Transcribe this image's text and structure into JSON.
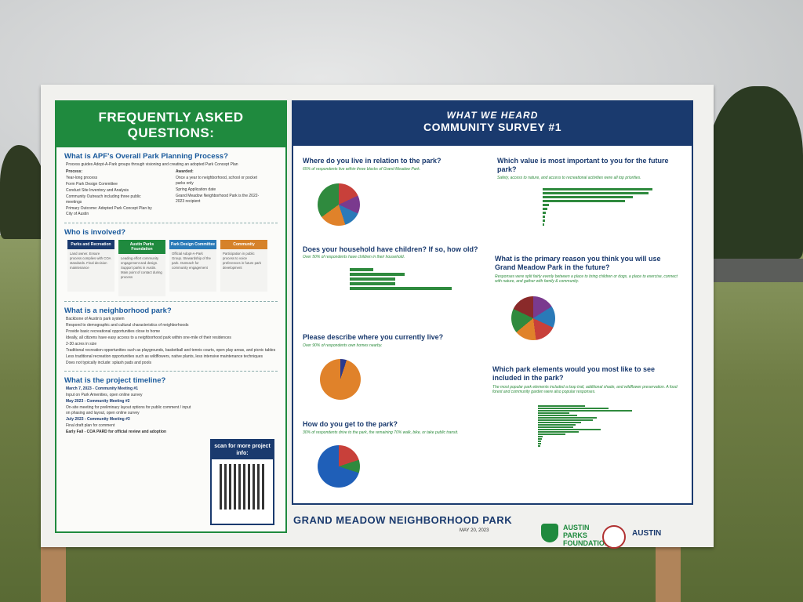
{
  "faq": {
    "title": "FREQUENTLY ASKED QUESTIONS:",
    "q1": "What is APF's Overall Park Planning Process?",
    "q1_text": "Process guides Adopt-A-Park groups through visioning and creating an adopted Park Concept Plan",
    "process_label": "Process:",
    "process": [
      "Year-long process",
      "Form Park Design Committee",
      "Conduct Site Inventory and Analysis",
      "Community Outreach including three public meetings",
      "Primary Outcome: Adopted Park Concept Plan by City of Austin"
    ],
    "awarded_label": "Awarded:",
    "awarded": [
      "Once a year to neighborhood, school or pocket parks only",
      "Spring Application date",
      "Grand Meadow Neighborhood Park is the 2022-2023 recipient"
    ],
    "q2": "Who is involved?",
    "orgs": [
      {
        "name": "Parks and Recreation",
        "color": "#1a3a6e",
        "text": "Land owner. Ensure process complies with COA standards. Final decision maintenance"
      },
      {
        "name": "Austin Parks Foundation",
        "color": "#1f8a3e",
        "text": "Leading effort community engagement and design. Support parks in Austin. Main point of contact during process"
      },
      {
        "name": "Park Design Committee",
        "color": "#2a7ab8",
        "text": "Official Adopt-A-Park Group. Stewardship of the park. Outreach for community engagement"
      },
      {
        "name": "Community",
        "color": "#d6822a",
        "text": "Participation in public process to voice preferences in future park development"
      }
    ],
    "q3": "What is a neighborhood park?",
    "q3_items": [
      "Backbone of Austin's park system",
      "Respond to demographic and cultural characteristics of neighborhoods",
      "Provide basic recreational opportunities close to home",
      "Ideally, all citizens have easy access to a neighborhood park within one-mile of their residences",
      "2-30 acres in size",
      "Traditional recreation opportunities such as playgrounds, basketball and tennis courts, open play areas, and picnic tables",
      "Less traditional recreation opportunities such as wildflowers, native plants, less intensive maintenance techniques",
      "Does not typically include: splash pads and pools"
    ],
    "q4": "What is the project timeline?",
    "timeline": [
      "March 7, 2023 - Community Meeting #1",
      "Input on Park Amenities, open online survey",
      "May 2023 - Community Meeting #2",
      "On-site meeting for preliminary layout options for public comment / input on phasing and layout, open online survey",
      "July 2023 - Community Meeting #3",
      "Final draft plan for comment",
      "Early Fall - COA PARD for official review and adoption"
    ],
    "qr_label": "scan for more project info:"
  },
  "survey": {
    "title1": "WHAT WE HEARD",
    "title2": "COMMUNITY SURVEY #1",
    "s1": "Where do you live in relation to the park?",
    "s1_sub": "65% of respondents live within three blocks of Grand Meadow Park.",
    "s2": "Does your household have children? If so, how old?",
    "s2_sub": "Over 50% of respondents have children in their household.",
    "s3": "Please describe where you currently live?",
    "s3_sub": "Over 90% of respondents own homes nearby.",
    "s4": "How do you get to the park?",
    "s4_sub": "30% of respondents drive to the park, the remaining 70% walk, bike, or take public transit.",
    "s5": "Which value is most important to you for the future park?",
    "s5_sub": "Safety, access to nature, and access to recreational activities were all top priorities.",
    "s6": "What is the primary reason you think you will use Grand Meadow Park in the future?",
    "s6_sub": "Responses were split fairly evenly between a place to bring children or dogs, a place to exercise, connect with nature, and gather with family & community.",
    "s7": "Which park elements would you most like to see included in the park?",
    "s7_sub": "The most popular park elements included a loop trail, additional shade, and wildflower preservation. A food forest and community garden were also popular responses."
  },
  "footer": {
    "title": "GRAND MEADOW NEIGHBORHOOD PARK",
    "date": "MAY 20, 2023",
    "apf": "AUSTIN PARKS FOUNDATION",
    "austin": "AUSTIN"
  }
}
